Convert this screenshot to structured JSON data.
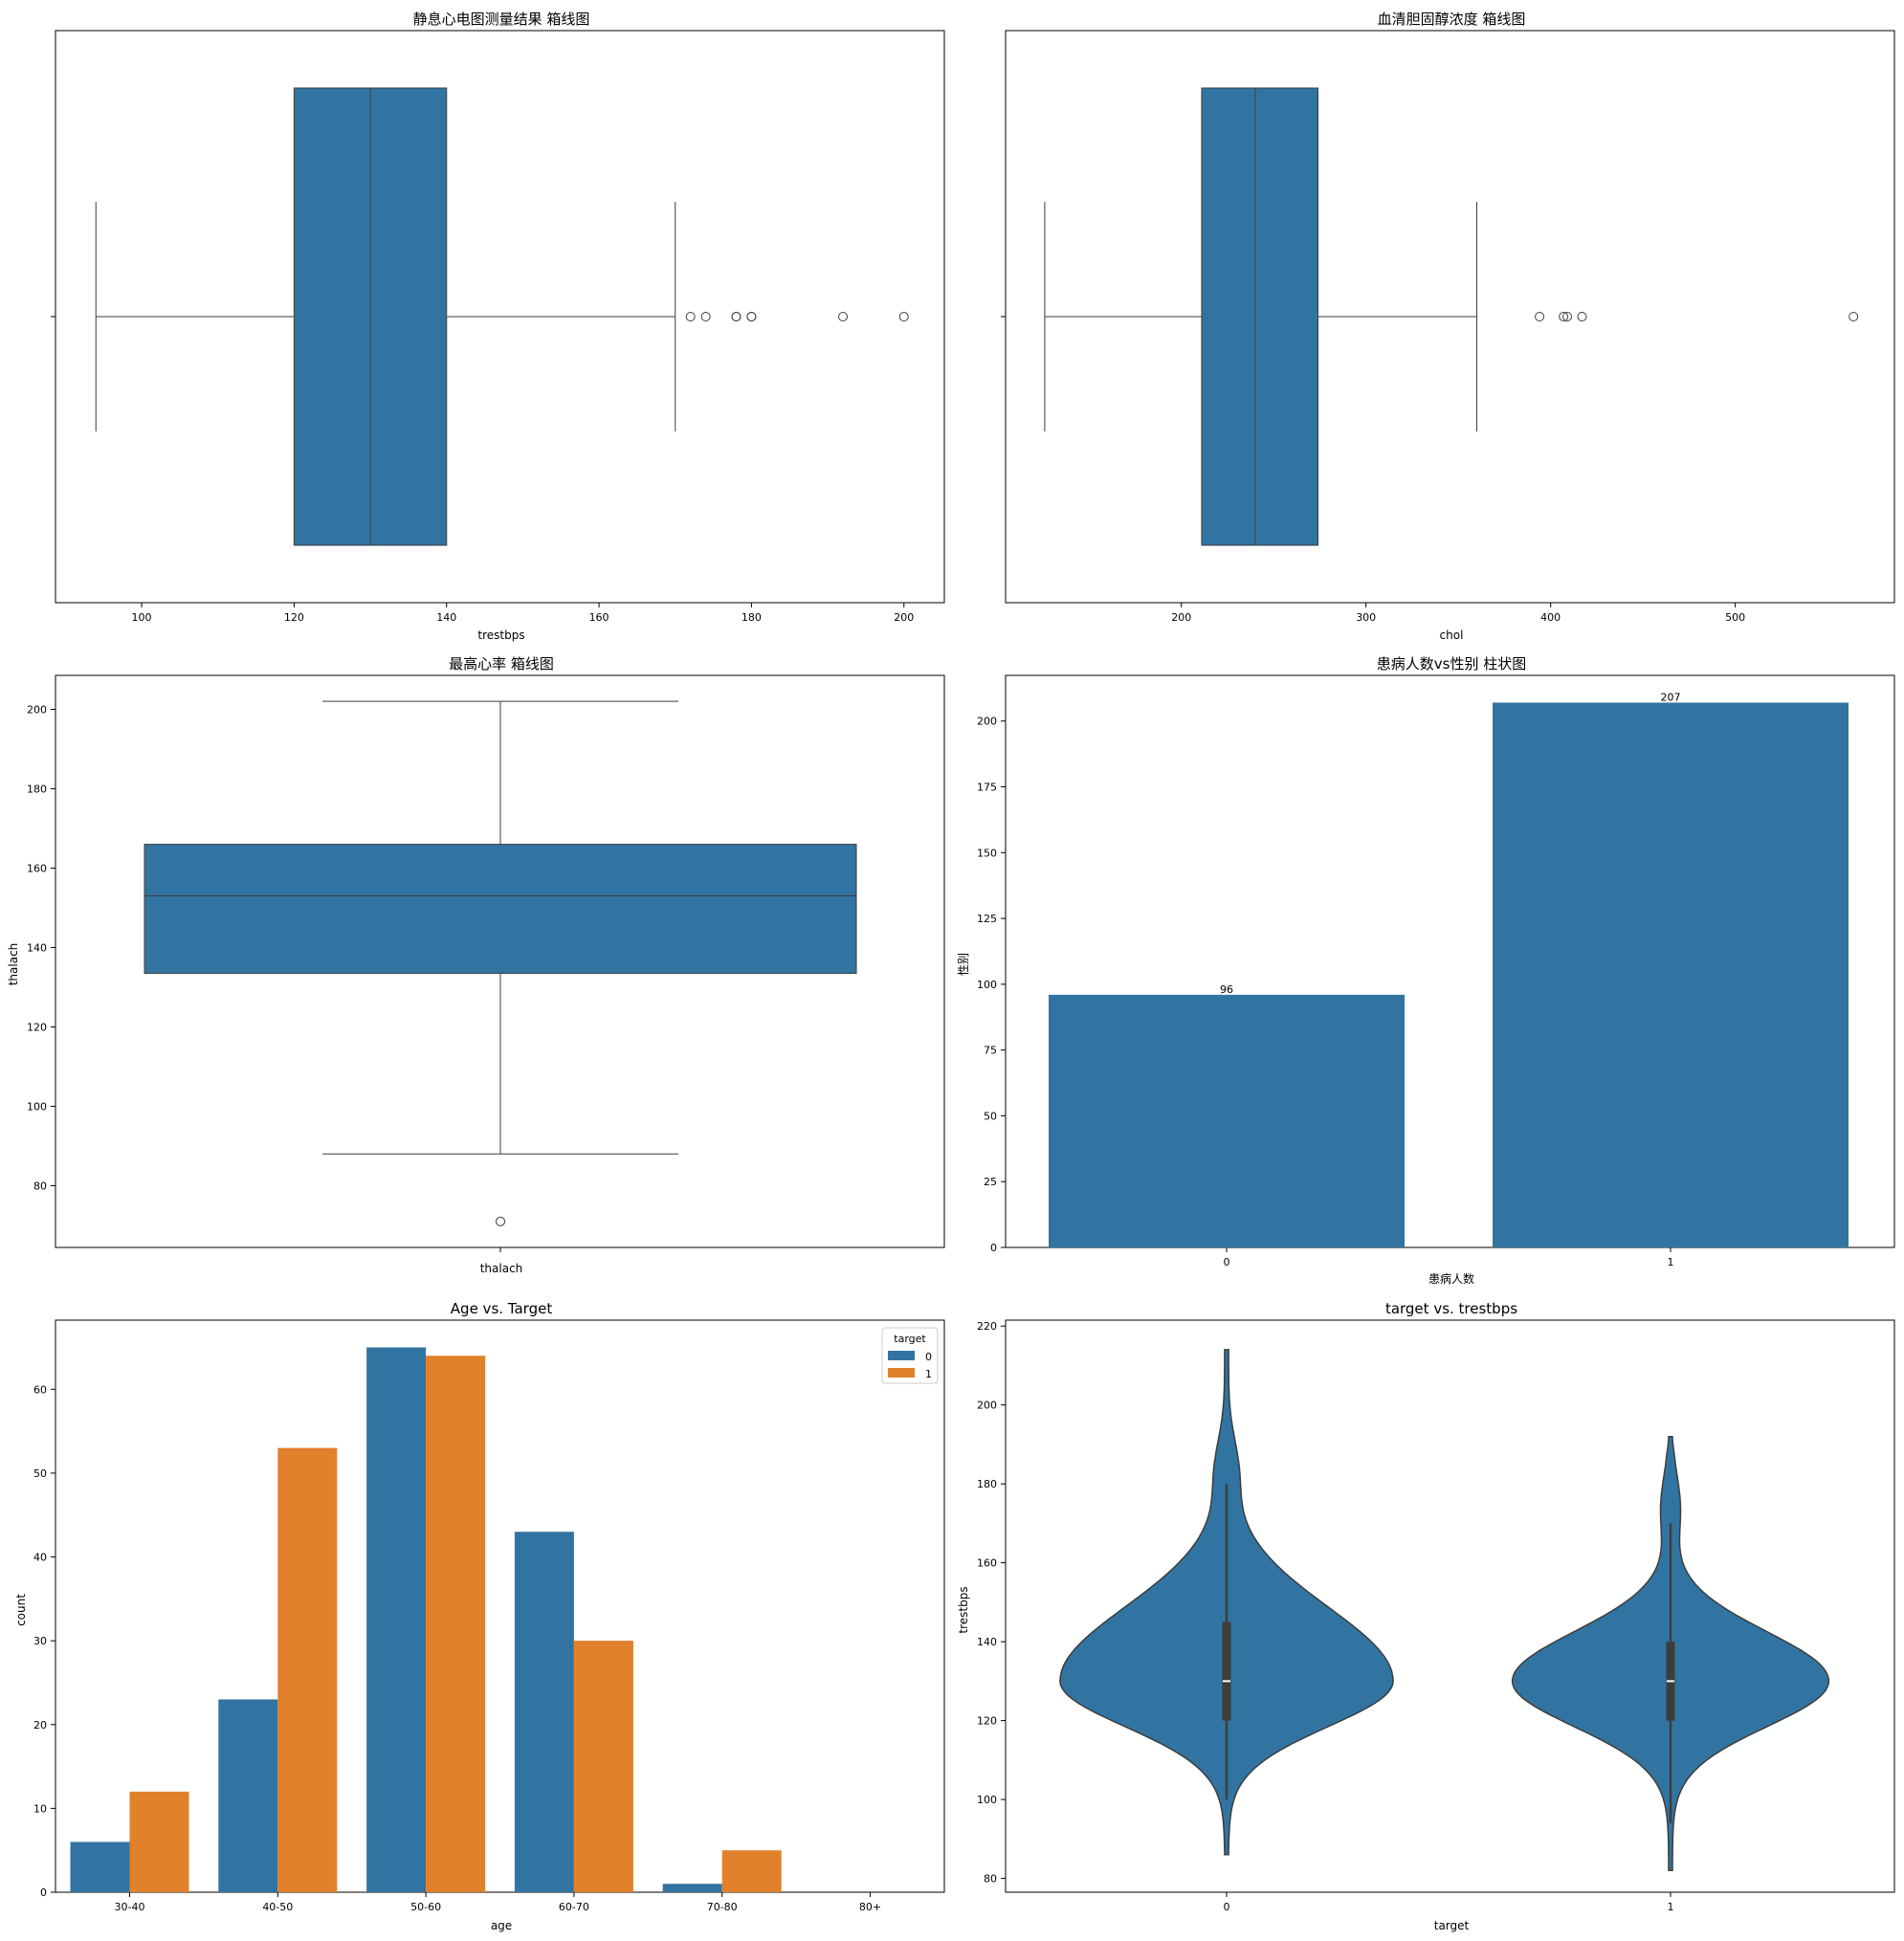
{
  "chart_data": [
    {
      "type": "box",
      "orientation": "horizontal",
      "title": "静息心电图测量结果 箱线图",
      "xlabel": "trestbps",
      "ylabel": "",
      "xlim": [
        88.7,
        205.3
      ],
      "xticks": [
        100,
        120,
        140,
        160,
        180,
        200
      ],
      "box": {
        "min": 94,
        "q1": 120,
        "median": 130,
        "q3": 140,
        "max": 170
      },
      "outliers": [
        172,
        174,
        178,
        178,
        180,
        180,
        192,
        200
      ],
      "color": "#3274a1"
    },
    {
      "type": "box",
      "orientation": "horizontal",
      "title": "血清胆固醇浓度 箱线图",
      "xlabel": "chol",
      "ylabel": "",
      "xlim": [
        104.8,
        586.2
      ],
      "xticks": [
        200,
        300,
        400,
        500
      ],
      "box": {
        "min": 126,
        "q1": 211,
        "median": 240,
        "q3": 274,
        "max": 360
      },
      "outliers": [
        394,
        407,
        409,
        417,
        564
      ],
      "color": "#3274a1"
    },
    {
      "type": "box",
      "orientation": "vertical",
      "title": "最高心率 箱线图",
      "xlabel": "thalach",
      "ylabel": "thalach",
      "ylim": [
        64.45,
        208.55
      ],
      "yticks": [
        80,
        100,
        120,
        140,
        160,
        180,
        200
      ],
      "box": {
        "min": 88,
        "q1": 133.5,
        "median": 153,
        "q3": 166,
        "max": 202
      },
      "outliers": [
        71
      ],
      "color": "#3274a1"
    },
    {
      "type": "bar",
      "title": "患病人数vs性别 柱状图",
      "xlabel": "患病人数",
      "ylabel": "性别",
      "categories": [
        "0",
        "1"
      ],
      "values": [
        96,
        207
      ],
      "data_labels": [
        "96",
        "207"
      ],
      "ylim": [
        0,
        217.35
      ],
      "yticks": [
        0,
        25,
        50,
        75,
        100,
        125,
        150,
        175,
        200
      ],
      "color": "#3274a1"
    },
    {
      "type": "bar",
      "title": "Age vs. Target",
      "xlabel": "age",
      "ylabel": "count",
      "categories": [
        "30-40",
        "40-50",
        "50-60",
        "60-70",
        "70-80",
        "80+"
      ],
      "series": [
        {
          "name": "0",
          "values": [
            6,
            23,
            65,
            43,
            1,
            0
          ],
          "color": "#3274a1"
        },
        {
          "name": "1",
          "values": [
            12,
            53,
            64,
            30,
            5,
            0
          ],
          "color": "#e1812c"
        }
      ],
      "legend_title": "target",
      "legend": "top-right",
      "ylim": [
        0,
        68.25
      ],
      "yticks": [
        0,
        10,
        20,
        30,
        40,
        50,
        60
      ]
    },
    {
      "type": "violin",
      "title": "target vs. trestbps",
      "xlabel": "target",
      "ylabel": "trestbps",
      "categories": [
        "0",
        "1"
      ],
      "ylim": [
        76.5,
        221.5
      ],
      "yticks": [
        80,
        100,
        120,
        140,
        160,
        180,
        200,
        220
      ],
      "groups": [
        {
          "name": "0",
          "min": 100,
          "q1": 120,
          "median": 130,
          "q3": 145,
          "max": 180,
          "kde_low": 86,
          "kde_high": 214
        },
        {
          "name": "1",
          "min": 94,
          "q1": 120,
          "median": 130,
          "q3": 140,
          "max": 170,
          "kde_low": 82,
          "kde_high": 192
        }
      ],
      "color": "#3274a1"
    }
  ]
}
